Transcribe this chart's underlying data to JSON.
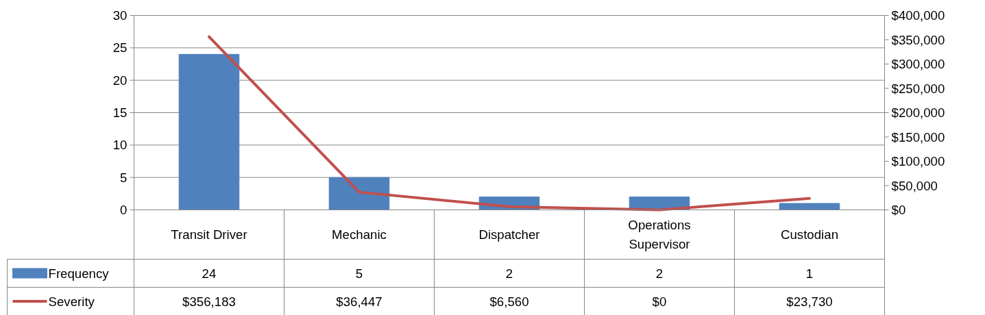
{
  "chart_data": {
    "type": "bar",
    "categories": [
      "Transit Driver",
      "Mechanic",
      "Dispatcher",
      "Operations Supervisor",
      "Custodian"
    ],
    "series": [
      {
        "name": "Frequency",
        "color": "#4f81bd",
        "values": [
          24,
          5,
          2,
          2,
          1
        ],
        "value_labels": [
          "24",
          "5",
          "2",
          "2",
          "1"
        ]
      },
      {
        "name": "Severity",
        "type": "line",
        "axis": "y2",
        "color": "#c0504d",
        "values": [
          356183,
          36447,
          6560,
          0,
          23730
        ],
        "value_labels": [
          "$356,183",
          "$36,447",
          "$6,560",
          "$0",
          "$23,730"
        ]
      }
    ],
    "ylim": [
      0,
      30
    ],
    "yticks": [
      0,
      5,
      10,
      15,
      20,
      25,
      30
    ],
    "y2lim": [
      0,
      400000
    ],
    "y2ticks": [
      {
        "value": 0,
        "label": "$0"
      },
      {
        "value": 50000,
        "label": "$50,000"
      },
      {
        "value": 100000,
        "label": "$100,000"
      },
      {
        "value": 150000,
        "label": "$150,000"
      },
      {
        "value": 200000,
        "label": "$200,000"
      },
      {
        "value": 250000,
        "label": "$250,000"
      },
      {
        "value": 300000,
        "label": "$300,000"
      },
      {
        "value": 350000,
        "label": "$350,000"
      },
      {
        "value": 400000,
        "label": "$400,000"
      }
    ],
    "grid": "y",
    "legend": "bottom",
    "line_style": "solid",
    "marker": "none"
  }
}
